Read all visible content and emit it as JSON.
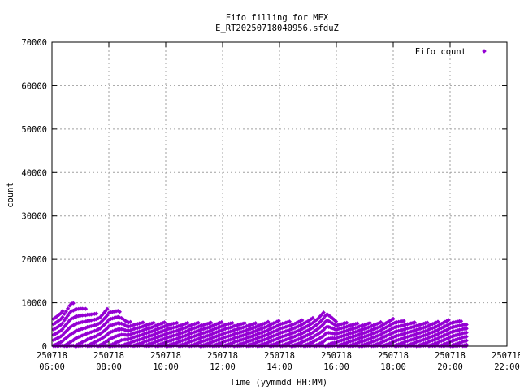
{
  "chart_data": {
    "type": "scatter",
    "title": "Fifo filling for MEX",
    "subtitle": "E_RT20250718040956.sfduZ",
    "xlabel": "Time (yymmdd HH:MM)",
    "ylabel": "count",
    "xlim": [
      "250718 06:00",
      "250718 22:00"
    ],
    "ylim": [
      0,
      70000
    ],
    "grid": true,
    "legend_position": "top-right",
    "marker": "diamond",
    "x_ticks": [
      {
        "date": "250718",
        "time": "06:00"
      },
      {
        "date": "250718",
        "time": "08:00"
      },
      {
        "date": "250718",
        "time": "10:00"
      },
      {
        "date": "250718",
        "time": "12:00"
      },
      {
        "date": "250718",
        "time": "14:00"
      },
      {
        "date": "250718",
        "time": "16:00"
      },
      {
        "date": "250718",
        "time": "18:00"
      },
      {
        "date": "250718",
        "time": "20:00"
      },
      {
        "date": "250718",
        "time": "22:00"
      }
    ],
    "y_ticks": [
      "0",
      "10000",
      "20000",
      "30000",
      "40000",
      "50000",
      "60000",
      "70000"
    ],
    "series": [
      {
        "name": "Fifo count",
        "color": "#9400d3",
        "x": [
          "250718 06:00",
          "250718 06:20",
          "250718 06:40",
          "250718 07:00",
          "250718 07:20",
          "250718 07:40",
          "250718 08:00",
          "250718 08:20",
          "250718 08:40",
          "250718 09:00",
          "250718 09:30",
          "250718 10:00",
          "250718 10:30",
          "250718 11:00",
          "250718 11:30",
          "250718 12:00",
          "250718 12:30",
          "250718 13:00",
          "250718 13:30",
          "250718 14:00",
          "250718 14:30",
          "250718 15:00",
          "250718 15:20",
          "250718 15:40",
          "250718 16:00",
          "250718 16:30",
          "250718 17:00",
          "250718 17:30",
          "250718 18:00",
          "250718 18:30",
          "250718 19:00",
          "250718 19:30",
          "250718 20:00",
          "250718 20:20",
          "250718 20:35"
        ],
        "peak": [
          7200,
          8000,
          10500,
          9500,
          8200,
          7500,
          9200,
          8500,
          5800,
          5600,
          5500,
          5700,
          5400,
          5600,
          5500,
          5700,
          5500,
          5400,
          5600,
          6000,
          5800,
          6300,
          7000,
          8600,
          5700,
          5500,
          5400,
          5600,
          6400,
          5800,
          5500,
          5700,
          6300,
          6000,
          5500
        ]
      }
    ]
  }
}
